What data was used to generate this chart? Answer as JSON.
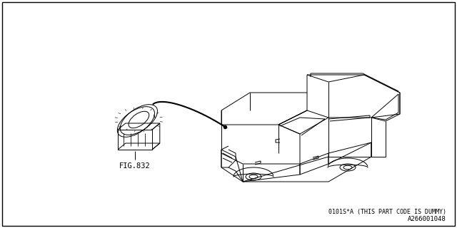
{
  "bg_color": "#ffffff",
  "border_color": "#000000",
  "line_color": "#000000",
  "fig_label": "FIG.832",
  "part_code": "0101S*A (THIS PART CODE IS DUMMY)",
  "diagram_id": "A266001048"
}
